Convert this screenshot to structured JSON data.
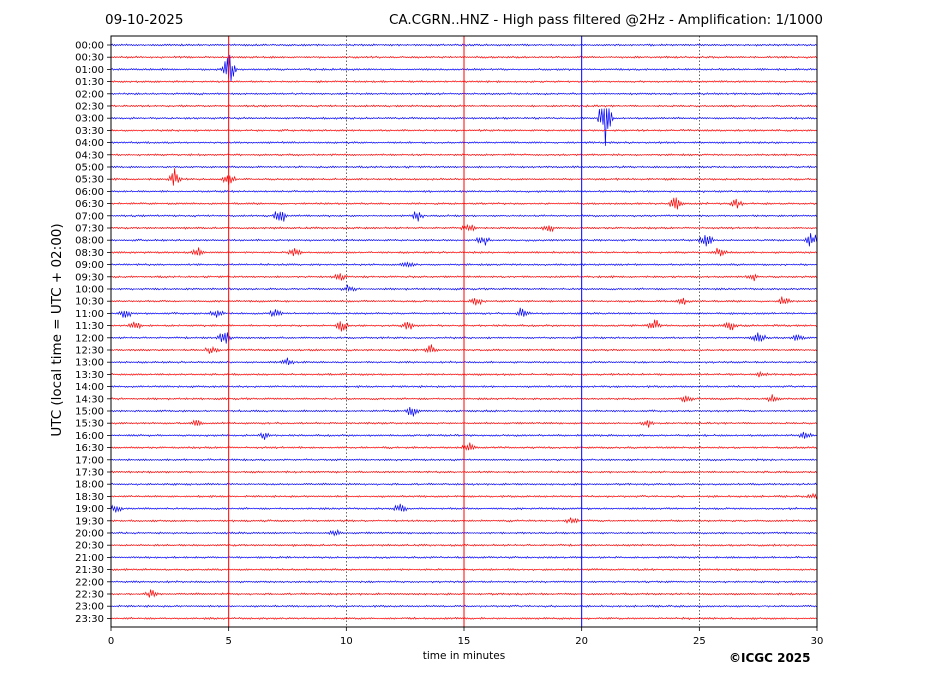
{
  "header": {
    "date": "09-10-2025",
    "title": "CA.CGRN..HNZ - High pass filtered @2Hz - Amplification: 1/1000"
  },
  "footer": {
    "copyright": "©ICGC 2025"
  },
  "colors": {
    "trace_a": "#ff0000",
    "trace_b": "#0000ff",
    "grid": "#000000"
  },
  "chart_data": {
    "type": "line",
    "title": "CA.CGRN..HNZ - High pass filtered @2Hz - Amplification: 1/1000",
    "xlabel": "time in minutes",
    "ylabel": "UTC (local time = UTC + 02:00)",
    "xlim": [
      0,
      30
    ],
    "x_ticks": [
      0,
      5,
      10,
      15,
      20,
      25,
      30
    ],
    "vertical_gridlines_minutes": [
      10,
      25
    ],
    "y_ticks": [
      "00:00",
      "00:30",
      "01:00",
      "01:30",
      "02:00",
      "02:30",
      "03:00",
      "03:30",
      "04:00",
      "04:30",
      "05:00",
      "05:30",
      "06:00",
      "06:30",
      "07:00",
      "07:30",
      "08:00",
      "08:30",
      "09:00",
      "09:30",
      "10:00",
      "10:30",
      "11:00",
      "11:30",
      "12:00",
      "12:30",
      "13:00",
      "13:30",
      "14:00",
      "14:30",
      "15:00",
      "15:30",
      "16:00",
      "16:30",
      "17:00",
      "17:30",
      "18:00",
      "18:30",
      "19:00",
      "19:30",
      "20:00",
      "20:30",
      "21:00",
      "21:30",
      "22:00",
      "22:30",
      "23:00",
      "23:30"
    ],
    "trace_colors_alternating": [
      "#0000ff",
      "#ff0000"
    ],
    "vertical_marks": [
      {
        "minute": 5.0,
        "color": "#ff0000"
      },
      {
        "minute": 15.0,
        "color": "#ff0000"
      },
      {
        "minute": 20.0,
        "color": "#0000ff"
      }
    ],
    "events": [
      {
        "row": "01:00",
        "minute": 5.0,
        "amp": 1.6
      },
      {
        "row": "03:00",
        "minute": 21.0,
        "amp": 2.5
      },
      {
        "row": "05:30",
        "minute": 2.7,
        "amp": 0.9
      },
      {
        "row": "05:30",
        "minute": 5.0,
        "amp": 0.6
      },
      {
        "row": "06:30",
        "minute": 24.0,
        "amp": 0.9
      },
      {
        "row": "06:30",
        "minute": 26.6,
        "amp": 0.5
      },
      {
        "row": "07:00",
        "minute": 7.2,
        "amp": 0.8
      },
      {
        "row": "07:00",
        "minute": 13.0,
        "amp": 0.6
      },
      {
        "row": "07:30",
        "minute": 15.2,
        "amp": 0.5
      },
      {
        "row": "07:30",
        "minute": 18.6,
        "amp": 0.4
      },
      {
        "row": "08:00",
        "minute": 15.8,
        "amp": 0.6
      },
      {
        "row": "08:00",
        "minute": 25.3,
        "amp": 0.9
      },
      {
        "row": "08:00",
        "minute": 29.8,
        "amp": 0.9
      },
      {
        "row": "08:30",
        "minute": 3.7,
        "amp": 0.5
      },
      {
        "row": "08:30",
        "minute": 7.8,
        "amp": 0.6
      },
      {
        "row": "08:30",
        "minute": 25.9,
        "amp": 0.6
      },
      {
        "row": "09:00",
        "minute": 12.6,
        "amp": 0.4
      },
      {
        "row": "09:30",
        "minute": 9.7,
        "amp": 0.4
      },
      {
        "row": "09:30",
        "minute": 27.3,
        "amp": 0.4
      },
      {
        "row": "10:00",
        "minute": 10.1,
        "amp": 0.5
      },
      {
        "row": "10:30",
        "minute": 15.5,
        "amp": 0.5
      },
      {
        "row": "10:30",
        "minute": 24.3,
        "amp": 0.4
      },
      {
        "row": "10:30",
        "minute": 28.6,
        "amp": 0.5
      },
      {
        "row": "11:00",
        "minute": 0.6,
        "amp": 0.6
      },
      {
        "row": "11:00",
        "minute": 4.5,
        "amp": 0.6
      },
      {
        "row": "11:00",
        "minute": 7.0,
        "amp": 0.6
      },
      {
        "row": "11:00",
        "minute": 17.5,
        "amp": 0.6
      },
      {
        "row": "11:30",
        "minute": 1.0,
        "amp": 0.6
      },
      {
        "row": "11:30",
        "minute": 9.8,
        "amp": 0.6
      },
      {
        "row": "11:30",
        "minute": 12.6,
        "amp": 0.5
      },
      {
        "row": "11:30",
        "minute": 23.1,
        "amp": 0.6
      },
      {
        "row": "11:30",
        "minute": 26.3,
        "amp": 0.6
      },
      {
        "row": "12:00",
        "minute": 4.8,
        "amp": 0.9
      },
      {
        "row": "12:00",
        "minute": 27.5,
        "amp": 0.9
      },
      {
        "row": "12:00",
        "minute": 29.2,
        "amp": 0.4
      },
      {
        "row": "12:30",
        "minute": 4.3,
        "amp": 0.5
      },
      {
        "row": "12:30",
        "minute": 13.6,
        "amp": 0.5
      },
      {
        "row": "13:00",
        "minute": 7.5,
        "amp": 0.4
      },
      {
        "row": "13:30",
        "minute": 27.6,
        "amp": 0.3
      },
      {
        "row": "14:30",
        "minute": 24.5,
        "amp": 0.4
      },
      {
        "row": "14:30",
        "minute": 28.1,
        "amp": 0.5
      },
      {
        "row": "15:00",
        "minute": 12.8,
        "amp": 0.6
      },
      {
        "row": "15:30",
        "minute": 3.6,
        "amp": 0.5
      },
      {
        "row": "15:30",
        "minute": 22.8,
        "amp": 0.4
      },
      {
        "row": "16:00",
        "minute": 6.5,
        "amp": 0.4
      },
      {
        "row": "16:00",
        "minute": 29.5,
        "amp": 0.4
      },
      {
        "row": "16:30",
        "minute": 15.2,
        "amp": 0.6
      },
      {
        "row": "18:30",
        "minute": 29.9,
        "amp": 0.4
      },
      {
        "row": "19:00",
        "minute": 0.2,
        "amp": 0.4
      },
      {
        "row": "19:00",
        "minute": 12.3,
        "amp": 0.6
      },
      {
        "row": "19:30",
        "minute": 19.6,
        "amp": 0.4
      },
      {
        "row": "20:00",
        "minute": 9.5,
        "amp": 0.3
      },
      {
        "row": "22:30",
        "minute": 1.7,
        "amp": 0.5
      }
    ]
  }
}
